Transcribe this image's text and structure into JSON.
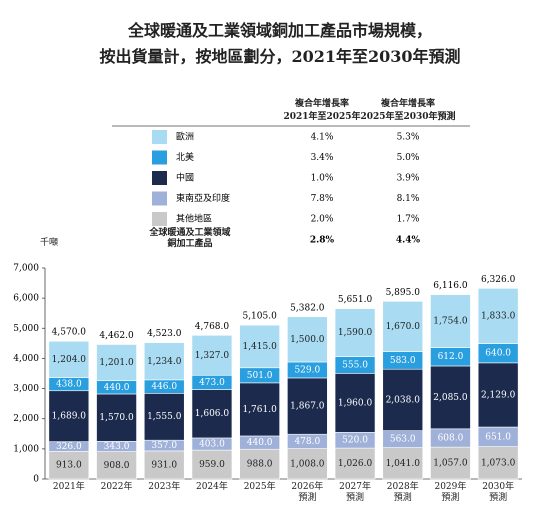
{
  "chart_data": {
    "type": "stacked_bar",
    "title": "全球暖通及工業領域銅加工產品市場規模，\n按出貨量計，按地區劃分，2021年至2030年預測",
    "y_label": "千噸",
    "categories": [
      "2021年",
      "2022年",
      "2023年",
      "2024年",
      "2025年",
      "2026年\n預測",
      "2027年\n預測",
      "2028年\n預測",
      "2029年\n預測",
      "2030年\n預測"
    ],
    "ylim": [
      0,
      7000
    ],
    "yticks": [
      0,
      {
        "value": 1000,
        "label": "1,000"
      },
      {
        "value": 2000,
        "label": "2,000"
      },
      {
        "value": 3000,
        "label": "3,000"
      },
      {
        "value": 4000,
        "label": "4,000"
      },
      {
        "value": 5000,
        "label": "5,000"
      },
      {
        "value": 6000,
        "label": "6,000"
      },
      {
        "value": 7000,
        "label": "7,000"
      }
    ],
    "cagr_headers": [
      "複合年增長率\n2021年至2025年",
      "複合年增長率\n2025年至2030年預測"
    ],
    "series": [
      {
        "name": "歐洲",
        "color": "#a9dcf3",
        "values": [
          1204,
          1201,
          1234,
          1327,
          1415,
          1500,
          1590,
          1670,
          1754,
          1833
        ],
        "value_labels": [
          "1,204.0",
          "1,201.0",
          "1,234.0",
          "1,327.0",
          "1,415.0",
          "1,500.0",
          "1,590.0",
          "1,670.0",
          "1,754.0",
          "1,833.0"
        ],
        "cagr": [
          4.1,
          5.3
        ],
        "cagr_labels": [
          "4.1%",
          "5.3%"
        ]
      },
      {
        "name": "北美",
        "color": "#2a9fe0",
        "values": [
          438,
          440,
          446,
          473,
          501,
          529,
          555,
          583,
          612,
          640
        ],
        "value_labels": [
          "438.0",
          "440.0",
          "446.0",
          "473.0",
          "501.0",
          "529.0",
          "555.0",
          "583.0",
          "612.0",
          "640.0"
        ],
        "cagr": [
          3.4,
          5.0
        ],
        "cagr_labels": [
          "3.4%",
          "5.0%"
        ]
      },
      {
        "name": "中國",
        "color": "#1c2a4d",
        "values": [
          1689,
          1570,
          1555,
          1606,
          1761,
          1867,
          1960,
          2038,
          2085,
          2129
        ],
        "value_labels": [
          "1,689.0",
          "1,570.0",
          "1,555.0",
          "1,606.0",
          "1,761.0",
          "1,867.0",
          "1,960.0",
          "2,038.0",
          "2,085.0",
          "2,129.0"
        ],
        "cagr": [
          1.0,
          3.9
        ],
        "cagr_labels": [
          "1.0%",
          "3.9%"
        ]
      },
      {
        "name": "東南亞及印度",
        "color": "#9fb1d9",
        "values": [
          326,
          343,
          357,
          403,
          440,
          478,
          520,
          563,
          608,
          651
        ],
        "value_labels": [
          "326.0",
          "343.0",
          "357.0",
          "403.0",
          "440.0",
          "478.0",
          "520.0",
          "563.0",
          "608.0",
          "651.0"
        ],
        "cagr": [
          7.8,
          8.1
        ],
        "cagr_labels": [
          "7.8%",
          "8.1%"
        ]
      },
      {
        "name": "其他地區",
        "color": "#c9c9c9",
        "values": [
          913,
          908,
          931,
          959,
          988,
          1008,
          1026,
          1041,
          1057,
          1073
        ],
        "value_labels": [
          "913.0",
          "908.0",
          "931.0",
          "959.0",
          "988.0",
          "1,008.0",
          "1,026.0",
          "1,041.0",
          "1,057.0",
          "1,073.0"
        ],
        "cagr": [
          2.0,
          1.7
        ],
        "cagr_labels": [
          "2.0%",
          "1.7%"
        ]
      }
    ],
    "totals": [
      4570,
      4462,
      4523,
      4768,
      5105,
      5382,
      5651,
      5895,
      6116,
      6326
    ],
    "total_labels": [
      "4,570.0",
      "4,462.0",
      "4,523.0",
      "4,768.0",
      "5,105.0",
      "5,382.0",
      "5,651.0",
      "5,895.0",
      "6,116.0",
      "6,326.0"
    ],
    "total_name": "全球暖通及工業領域\n銅加工產品",
    "total_cagr": [
      2.8,
      4.4
    ],
    "total_cagr_labels": [
      "2.8%",
      "4.4%"
    ]
  }
}
